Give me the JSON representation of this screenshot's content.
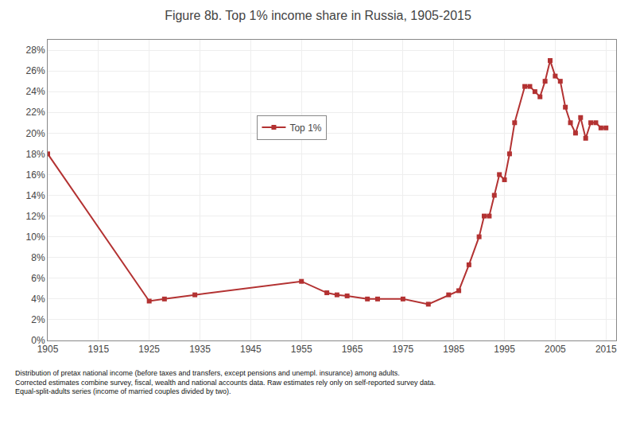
{
  "chart_data": {
    "type": "line",
    "title": "Figure 8b. Top 1% income share in Russia, 1905-2015",
    "annotations": [
      "Distribution of pretax national income (before taxes and transfers, except pensions and unempl. insurance) among adults.\nCorrected estimates combine survey, fiscal, wealth and national accounts data. Raw estimates rely only on self-reported survey data.\nEqual-split-adults series (income of married couples divided by two)."
    ],
    "x": [
      1905,
      1925,
      1928,
      1934,
      1955,
      1960,
      1962,
      1964,
      1968,
      1970,
      1975,
      1980,
      1984,
      1986,
      1988,
      1990,
      1991,
      1992,
      1993,
      1994,
      1995,
      1996,
      1997,
      1999,
      2000,
      2001,
      2002,
      2003,
      2004,
      2005,
      2006,
      2007,
      2008,
      2009,
      2010,
      2011,
      2012,
      2013,
      2014,
      2015
    ],
    "series": [
      {
        "name": "Top 1%",
        "color": "#b33232",
        "marker": "square",
        "values": [
          0.18,
          0.038,
          0.04,
          0.044,
          0.057,
          0.046,
          0.044,
          0.043,
          0.04,
          0.04,
          0.04,
          0.035,
          0.044,
          0.048,
          0.073,
          0.1,
          0.12,
          0.12,
          0.14,
          0.16,
          0.155,
          0.18,
          0.21,
          0.245,
          0.245,
          0.24,
          0.235,
          0.25,
          0.27,
          0.255,
          0.25,
          0.225,
          0.21,
          0.2,
          0.215,
          0.195,
          0.21,
          0.21,
          0.205,
          0.205
        ]
      }
    ],
    "xlim": [
      1905,
      2017
    ],
    "xticks": [
      1905,
      1915,
      1925,
      1935,
      1945,
      1955,
      1965,
      1975,
      1985,
      1995,
      2005,
      2015
    ],
    "ylim": [
      0,
      0.29
    ],
    "yticks": [
      {
        "value": 0.0,
        "label": "0%"
      },
      {
        "value": 0.02,
        "label": "2%"
      },
      {
        "value": 0.04,
        "label": "4%"
      },
      {
        "value": 0.06,
        "label": "6%"
      },
      {
        "value": 0.08,
        "label": "8%"
      },
      {
        "value": 0.1,
        "label": "10%"
      },
      {
        "value": 0.12,
        "label": "12%"
      },
      {
        "value": 0.14,
        "label": "14%"
      },
      {
        "value": 0.16,
        "label": "16%"
      },
      {
        "value": 0.18,
        "label": "18%"
      },
      {
        "value": 0.2,
        "label": "20%"
      },
      {
        "value": 0.22,
        "label": "22%"
      },
      {
        "value": 0.24,
        "label": "24%"
      },
      {
        "value": 0.26,
        "label": "26%"
      },
      {
        "value": 0.28,
        "label": "28%"
      }
    ],
    "grid": true,
    "legend": "upper center"
  }
}
